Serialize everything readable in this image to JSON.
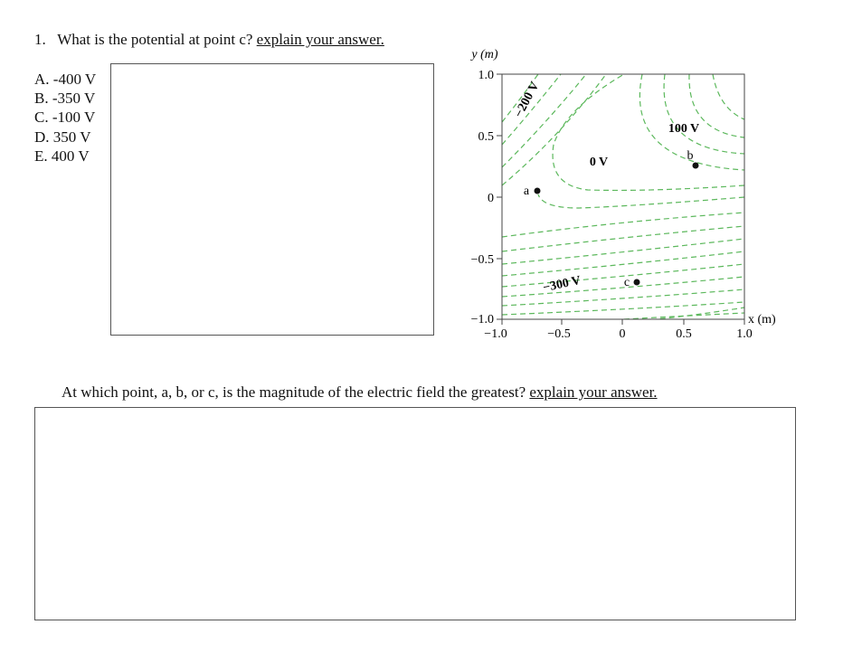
{
  "question1": {
    "number": "1.",
    "text": "What is the potential at point c?",
    "instruction": "explain your answer.",
    "options": [
      "A. -400 V",
      "B. -350 V",
      "C. -100 V",
      "D. 350 V",
      "E. 400 V"
    ]
  },
  "figure": {
    "y_axis_label": "y (m)",
    "x_axis_label": "x (m)",
    "y_ticks": [
      "1.0",
      "0.5",
      "0",
      "−0.5",
      "−1.0"
    ],
    "x_ticks": [
      "−1.0",
      "−0.5",
      "0",
      "0.5",
      "1.0"
    ],
    "equipotential_labels": [
      "−200 V",
      "0 V",
      "100 V",
      "−300 V"
    ],
    "points": [
      "a",
      "b",
      "c"
    ]
  },
  "question2": {
    "text": "At which point, a, b, or c, is the magnitude of the electric field the greatest?",
    "instruction": "explain your answer."
  }
}
